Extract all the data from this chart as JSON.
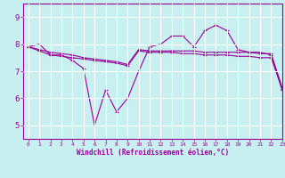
{
  "xlabel": "Windchill (Refroidissement éolien,°C)",
  "background_color": "#c8f0f0",
  "line_color": "#990099",
  "grid_color": "#ffffff",
  "xlim": [
    -0.5,
    23
  ],
  "ylim": [
    4.5,
    9.5
  ],
  "yticks": [
    5,
    6,
    7,
    8,
    9
  ],
  "xticks": [
    0,
    1,
    2,
    3,
    4,
    5,
    6,
    7,
    8,
    9,
    10,
    11,
    12,
    13,
    14,
    15,
    16,
    17,
    18,
    19,
    20,
    21,
    22,
    23
  ],
  "series": [
    [
      7.9,
      8.0,
      7.6,
      7.6,
      7.4,
      7.1,
      5.0,
      6.3,
      5.5,
      6.0,
      7.0,
      7.9,
      8.0,
      8.3,
      8.3,
      7.9,
      8.5,
      8.7,
      8.5,
      7.8,
      7.7,
      7.7,
      7.6,
      6.3
    ],
    [
      7.9,
      7.75,
      7.6,
      7.55,
      7.5,
      7.45,
      7.4,
      7.35,
      7.3,
      7.2,
      7.75,
      7.7,
      7.7,
      7.7,
      7.65,
      7.65,
      7.6,
      7.6,
      7.6,
      7.55,
      7.55,
      7.5,
      7.5,
      6.35
    ],
    [
      7.9,
      7.8,
      7.7,
      7.65,
      7.6,
      7.5,
      7.45,
      7.4,
      7.35,
      7.25,
      7.8,
      7.75,
      7.75,
      7.75,
      7.75,
      7.75,
      7.7,
      7.7,
      7.7,
      7.7,
      7.7,
      7.65,
      7.65,
      6.4
    ]
  ]
}
